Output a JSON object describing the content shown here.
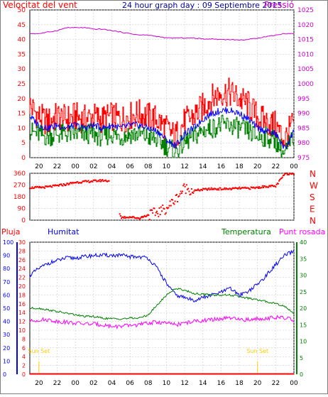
{
  "title": "24 hour graph day : 09 Septiembre 2015",
  "colors": {
    "wind": "#ff0000",
    "gust": "#ff0000",
    "avg": "#0000ff",
    "windlow": "#008000",
    "pressure": "#cc00cc",
    "direction": "#ff0000",
    "humidity": "#0000ff",
    "temperature": "#008000",
    "dewpoint": "#ff00ff",
    "rain": "#ff0000",
    "sun": "#ffcc00",
    "axis": "#000000",
    "grid": "#c0c0c0",
    "title": "#0000aa"
  },
  "time_axis": [
    "20",
    "22",
    "00",
    "02",
    "04",
    "06",
    "08",
    "10",
    "12",
    "14",
    "16",
    "18",
    "20",
    "22",
    "00"
  ],
  "panel_wind": {
    "left_label": "Velocitat del vent",
    "right_label": "Pressió",
    "left_ticks": [
      "50",
      "45",
      "40",
      "35",
      "30",
      "25",
      "20",
      "15",
      "10",
      "5",
      "0"
    ],
    "right_ticks": [
      "1025",
      "1020",
      "1015",
      "1010",
      "1005",
      "1000",
      "995",
      "990",
      "985",
      "980",
      "975"
    ]
  },
  "panel_dir": {
    "left_ticks": [
      "360",
      "270",
      "180",
      "90",
      "0"
    ],
    "right_labels": [
      "N",
      "W",
      "S",
      "E",
      "N"
    ]
  },
  "panel_climate": {
    "label_rain": "Pluja",
    "label_hum": "Humitat",
    "label_temp": "Temperatura",
    "label_dew": "Punt rosada",
    "hum_ticks": [
      "100",
      "90",
      "80",
      "70",
      "60",
      "50",
      "40",
      "30",
      "20",
      "10",
      "0"
    ],
    "rain_ticks": [
      "30",
      "28",
      "26",
      "24",
      "22",
      "20",
      "18",
      "16",
      "14",
      "12",
      "10",
      "8",
      "6",
      "4",
      "2",
      "0"
    ],
    "temp_ticks": [
      "40",
      "35",
      "30",
      "25",
      "20",
      "15",
      "10",
      "5",
      "0"
    ],
    "sunset1": "Sun Set",
    "sunset2": "Sun Set"
  },
  "chart_data": [
    {
      "type": "line",
      "title": "24 hour graph day : 09 Septiembre 2015",
      "ylabel": "Velocitat del vent",
      "y2label": "Pressió",
      "x": [
        "19",
        "20",
        "21",
        "22",
        "23",
        "00",
        "01",
        "02",
        "03",
        "04",
        "05",
        "06",
        "07",
        "08",
        "09",
        "10",
        "11",
        "12",
        "13",
        "14",
        "15",
        "16",
        "17",
        "18",
        "19",
        "20",
        "21",
        "22",
        "23",
        "24"
      ],
      "ylim": [
        0,
        50
      ],
      "y2lim": [
        975,
        1025
      ],
      "series": [
        {
          "axis": "left",
          "values": [
            18,
            14,
            12,
            14,
            13,
            14,
            13,
            14,
            13,
            14,
            13,
            14,
            15,
            14,
            13,
            10,
            7,
            12,
            14,
            17,
            20,
            22,
            22,
            20,
            18,
            14,
            12,
            11,
            6,
            12
          ]
        },
        {
          "axis": "left",
          "values": [
            14,
            11,
            10,
            11,
            10,
            11,
            10,
            11,
            10,
            11,
            10,
            11,
            11,
            10,
            9,
            6,
            4,
            8,
            10,
            13,
            15,
            16,
            16,
            15,
            13,
            10,
            9,
            8,
            3,
            9
          ]
        },
        {
          "axis": "left",
          "values": [
            9,
            8,
            7,
            8,
            8,
            8,
            8,
            8,
            7,
            8,
            7,
            8,
            8,
            7,
            6,
            4,
            2,
            5,
            7,
            9,
            10,
            11,
            11,
            10,
            9,
            7,
            7,
            6,
            1,
            7
          ]
        },
        {
          "axis": "right",
          "values": [
            1017,
            1017,
            1017.5,
            1018,
            1019,
            1019,
            1019,
            1018.5,
            1018.5,
            1018,
            1017.5,
            1017,
            1016.5,
            1016.5,
            1016,
            1015.5,
            1015.5,
            1015.5,
            1015.5,
            1015.2,
            1015.2,
            1015,
            1015,
            1014.8,
            1015,
            1015.5,
            1016,
            1016.5,
            1017,
            1017
          ]
        }
      ]
    },
    {
      "type": "scatter",
      "ylim": [
        0,
        360
      ],
      "x": [
        "19",
        "20",
        "21",
        "22",
        "23",
        "00",
        "01",
        "02",
        "03",
        "04",
        "05",
        "06",
        "07",
        "08",
        "09",
        "10",
        "11",
        "12",
        "13",
        "14",
        "15",
        "16",
        "17",
        "18",
        "19",
        "20",
        "21",
        "22",
        "23",
        "24"
      ],
      "values": [
        250,
        250,
        255,
        265,
        275,
        290,
        295,
        300,
        305,
        300,
        20,
        25,
        15,
        40,
        60,
        90,
        160,
        250,
        225,
        235,
        240,
        240,
        240,
        245,
        245,
        250,
        260,
        260,
        355,
        360
      ]
    },
    {
      "type": "line",
      "ylabel": "Humitat",
      "y2label": "Temperatura",
      "x": [
        "19",
        "20",
        "21",
        "22",
        "23",
        "00",
        "01",
        "02",
        "03",
        "04",
        "05",
        "06",
        "07",
        "08",
        "09",
        "10",
        "11",
        "12",
        "13",
        "14",
        "15",
        "16",
        "17",
        "18",
        "19",
        "20",
        "21",
        "22",
        "23",
        "24"
      ],
      "ylim": [
        0,
        100
      ],
      "y2lim": [
        0,
        40
      ],
      "series": [
        {
          "name": "Humitat",
          "axis": "left",
          "values": [
            75,
            80,
            84,
            86,
            88,
            88,
            89,
            90,
            90,
            90,
            90,
            89,
            89,
            88,
            80,
            69,
            60,
            58,
            56,
            58,
            60,
            62,
            65,
            60,
            63,
            68,
            75,
            83,
            90,
            93
          ]
        },
        {
          "name": "Temperatura",
          "axis": "right",
          "values": [
            20,
            20,
            19.5,
            19,
            18.5,
            18,
            17.5,
            17.5,
            17,
            16.8,
            16.8,
            17,
            17,
            18,
            21,
            24,
            26,
            25.5,
            24.5,
            24.2,
            24,
            24,
            24,
            23.5,
            23,
            22.5,
            22,
            21.5,
            20.5,
            18.5
          ]
        },
        {
          "name": "Punt rosada",
          "axis": "right",
          "values": [
            16,
            16.5,
            16.5,
            16,
            15.8,
            15.5,
            15.3,
            15.2,
            15,
            14.5,
            14.5,
            14.8,
            15,
            15.5,
            15.8,
            15.5,
            15,
            15.5,
            16,
            16.3,
            16.5,
            16.8,
            17,
            16.5,
            16.5,
            16.8,
            17,
            17.2,
            17,
            16.5
          ]
        },
        {
          "name": "Pluja",
          "axis": "rain",
          "values": [
            0,
            0,
            0,
            0,
            0,
            0,
            0,
            0,
            0,
            0,
            0,
            0,
            0,
            0,
            0,
            0,
            0,
            0,
            0,
            0,
            0,
            0,
            0,
            0,
            0,
            0,
            0,
            0,
            0,
            0
          ]
        }
      ],
      "annotations": [
        "Sun Set",
        "Sun Set"
      ]
    }
  ]
}
